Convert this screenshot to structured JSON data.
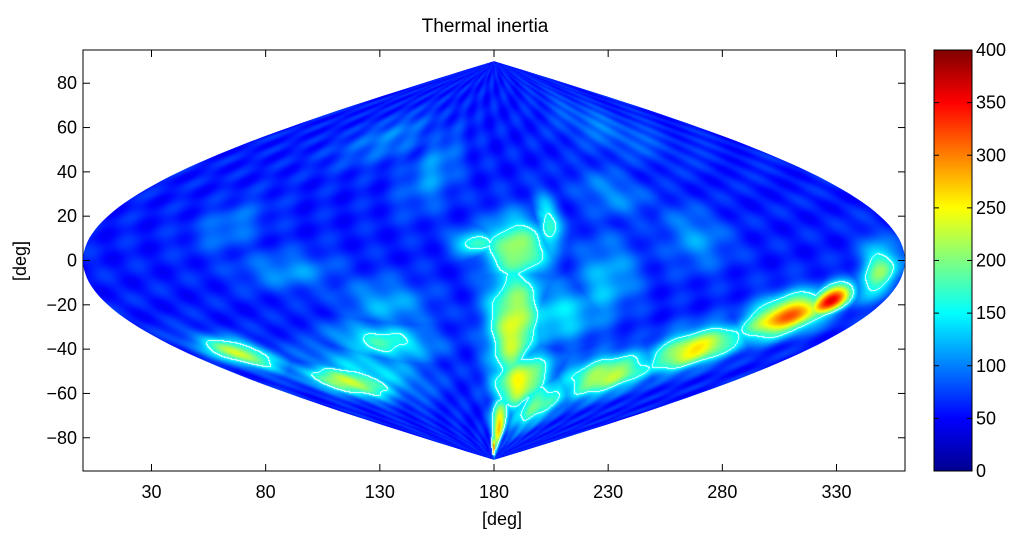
{
  "chart_data": {
    "type": "heatmap",
    "projection": "sinusoidal",
    "colormap": "jet",
    "title": "Thermal inertia",
    "xlabel": "[deg]",
    "ylabel": "[deg]",
    "xlim": [
      0,
      360
    ],
    "ylim": [
      -95,
      95
    ],
    "x_ticks": [
      30,
      80,
      130,
      180,
      230,
      280,
      330
    ],
    "y_ticks": [
      80,
      60,
      40,
      20,
      0,
      -20,
      -40,
      -60,
      -80
    ],
    "x_tick_labels": [
      "30",
      "80",
      "130",
      "180",
      "230",
      "280",
      "330"
    ],
    "y_tick_labels": [
      "80",
      "60",
      "40",
      "20",
      "0",
      "−20",
      "−40",
      "−60",
      "−80"
    ],
    "colorbar": {
      "min": 0,
      "max": 400,
      "ticks": [
        0,
        50,
        100,
        150,
        200,
        250,
        300,
        350,
        400
      ],
      "tick_labels": [
        "0",
        "50",
        "100",
        "150",
        "200",
        "250",
        "300",
        "350",
        "400"
      ]
    },
    "contour_level": 150,
    "background_value": 60,
    "features": [
      {
        "lon": 190,
        "lat": -30,
        "slon": 9,
        "slat": 20,
        "value": 240
      },
      {
        "lon": 190,
        "lat": 5,
        "slon": 10,
        "slat": 10,
        "value": 220
      },
      {
        "lon": 172,
        "lat": 8,
        "slon": 7,
        "slat": 4,
        "value": 180
      },
      {
        "lon": 205,
        "lat": 15,
        "slon": 4,
        "slat": 10,
        "value": 170
      },
      {
        "lon": 203,
        "lat": 20,
        "slon": 3,
        "slat": 4,
        "value": 150
      },
      {
        "lon": 200,
        "lat": -55,
        "slon": 14,
        "slat": 9,
        "value": 250
      },
      {
        "lon": 188,
        "lat": -75,
        "slon": 8,
        "slat": 9,
        "value": 270
      },
      {
        "lon": 180,
        "lat": -85,
        "slon": 5,
        "slat": 4,
        "value": 310
      },
      {
        "lon": 225,
        "lat": -65,
        "slon": 18,
        "slat": 8,
        "value": 190
      },
      {
        "lon": 260,
        "lat": -52,
        "slon": 20,
        "slat": 7,
        "value": 230
      },
      {
        "lon": 295,
        "lat": -40,
        "slon": 15,
        "slat": 7,
        "value": 260
      },
      {
        "lon": 322,
        "lat": -25,
        "slon": 12,
        "slat": 7,
        "value": 310
      },
      {
        "lon": 335,
        "lat": -18,
        "slon": 6,
        "slat": 5,
        "value": 360
      },
      {
        "lon": 350,
        "lat": -5,
        "slon": 6,
        "slat": 9,
        "value": 200
      },
      {
        "lon": 210,
        "lat": -25,
        "slon": 18,
        "slat": 10,
        "value": 140
      },
      {
        "lon": 230,
        "lat": -10,
        "slon": 10,
        "slat": 14,
        "value": 125
      },
      {
        "lon": 120,
        "lat": -37,
        "slon": 18,
        "slat": 6,
        "value": 170
      },
      {
        "lon": 130,
        "lat": -20,
        "slon": 14,
        "slat": 8,
        "value": 120
      },
      {
        "lon": 30,
        "lat": -42,
        "slon": 12,
        "slat": 5,
        "value": 230
      },
      {
        "lon": 70,
        "lat": -55,
        "slon": 20,
        "slat": 5,
        "value": 230
      },
      {
        "lon": 95,
        "lat": -50,
        "slon": 25,
        "slat": 8,
        "value": 140
      },
      {
        "lon": 90,
        "lat": -5,
        "slon": 15,
        "slat": 6,
        "value": 110
      },
      {
        "lon": 60,
        "lat": 15,
        "slon": 10,
        "slat": 8,
        "value": 100
      },
      {
        "lon": 145,
        "lat": 40,
        "slon": 10,
        "slat": 12,
        "value": 110
      },
      {
        "lon": 240,
        "lat": 30,
        "slon": 12,
        "slat": 8,
        "value": 105
      },
      {
        "lon": 270,
        "lat": 10,
        "slon": 10,
        "slat": 10,
        "value": 110
      },
      {
        "lon": 275,
        "lat": 60,
        "slon": 25,
        "slat": 10,
        "value": 95
      },
      {
        "lon": 100,
        "lat": 55,
        "slon": 20,
        "slat": 8,
        "value": 100
      }
    ]
  }
}
